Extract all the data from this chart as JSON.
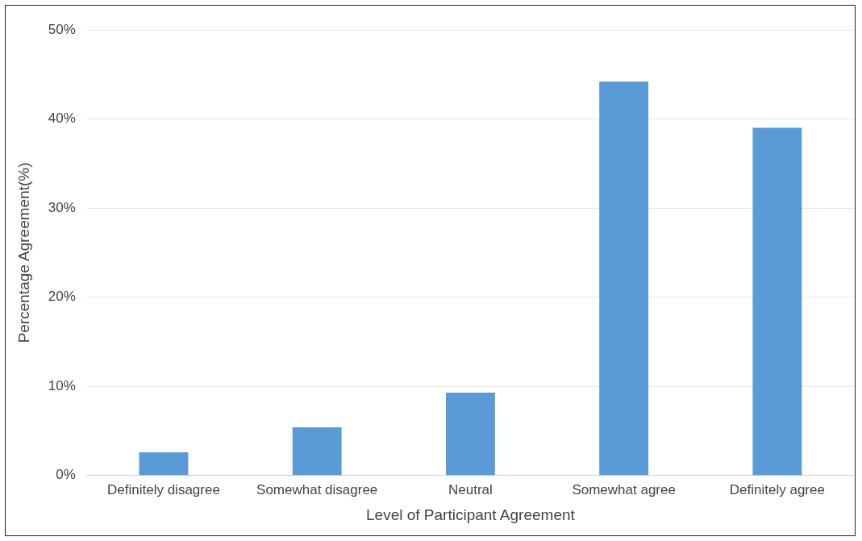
{
  "chart_data": {
    "type": "bar",
    "xlabel": "Level of Participant Agreement",
    "ylabel": "Percentage Agreement(%)",
    "categories": [
      "Definitely disagree",
      "Somewhat disagree",
      "Neutral",
      "Somewhat agree",
      "Definitely agree"
    ],
    "values": [
      2.6,
      5.4,
      9.3,
      44.2,
      39
    ],
    "color": "#5b9bd5",
    "ylim": [
      0,
      50
    ],
    "yticks": [
      {
        "value": 0,
        "label": "0%"
      },
      {
        "value": 10,
        "label": "10%"
      },
      {
        "value": 20,
        "label": "20%"
      },
      {
        "value": 30,
        "label": "30%"
      },
      {
        "value": 40,
        "label": "40%"
      },
      {
        "value": 50,
        "label": "50%"
      }
    ],
    "grid": "y",
    "legend": false
  }
}
